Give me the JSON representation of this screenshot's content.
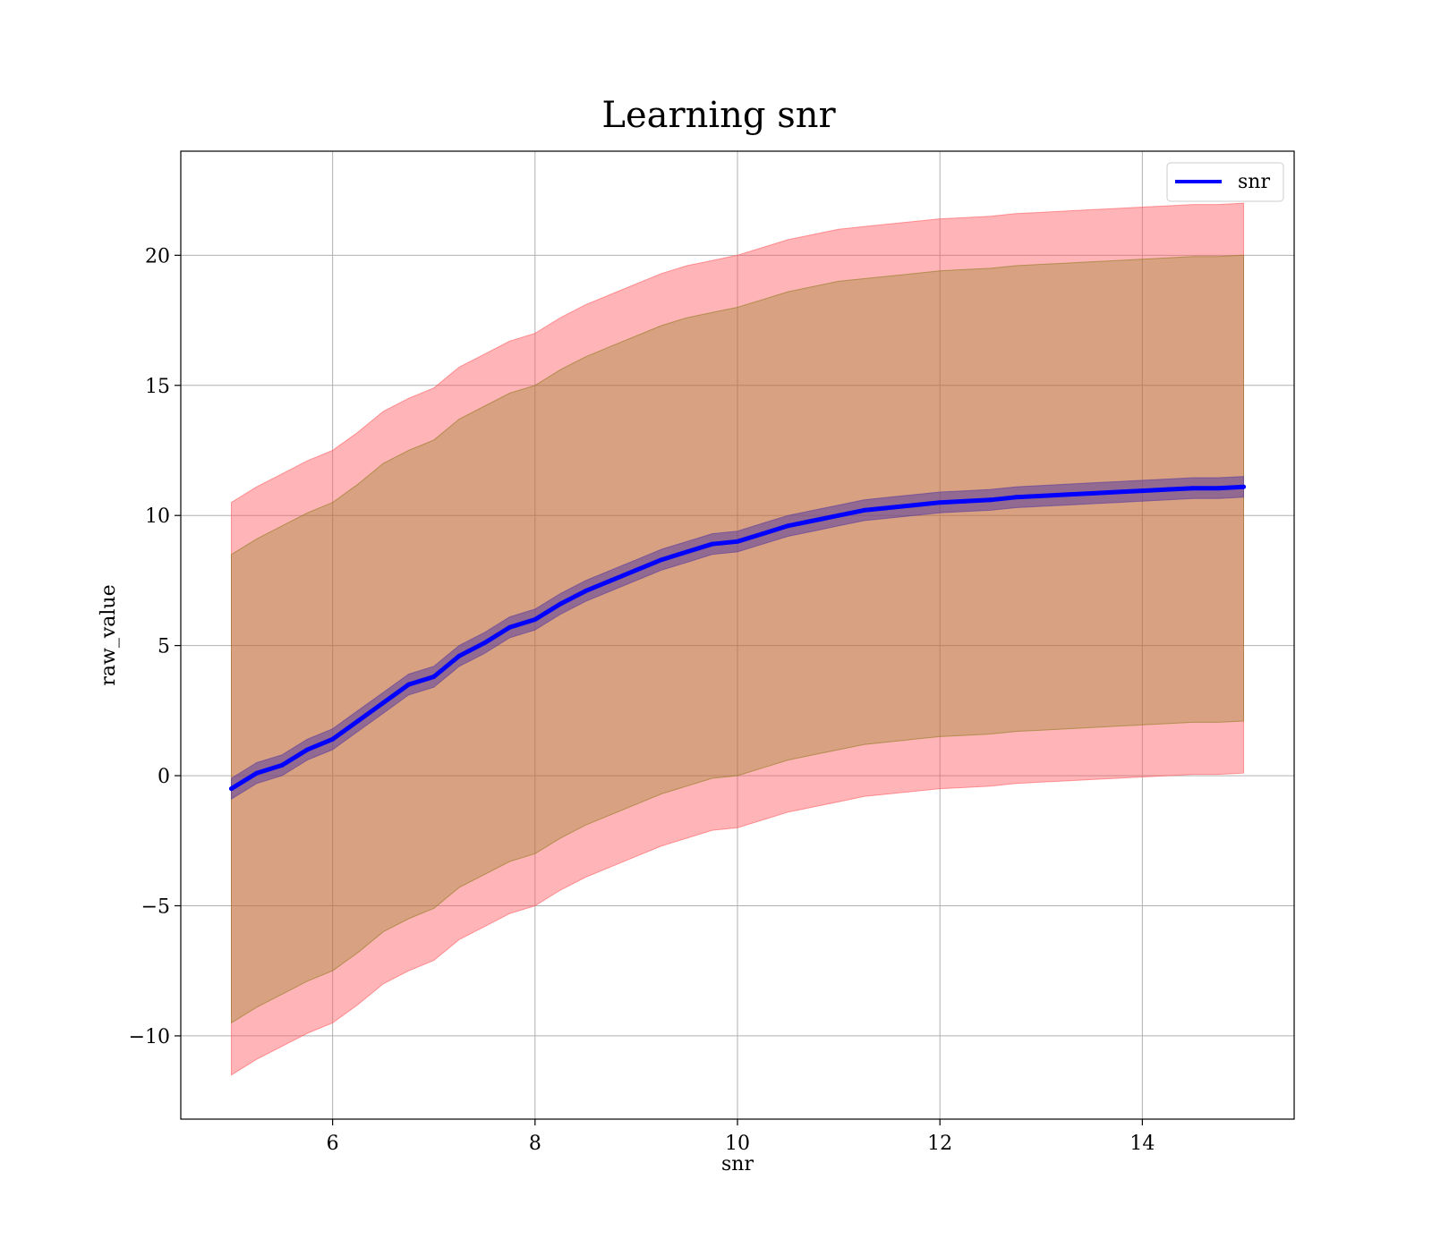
{
  "chart_data": {
    "type": "line",
    "title": "Learning snr",
    "xlabel": "snr",
    "ylabel": "raw_value",
    "xlim": [
      4.5,
      15.5
    ],
    "ylim": [
      -13.2,
      24.0
    ],
    "xticks": [
      6,
      8,
      10,
      12,
      14
    ],
    "yticks": [
      -10,
      -5,
      0,
      5,
      10,
      15,
      20
    ],
    "xtick_labels": [
      "6",
      "8",
      "10",
      "12",
      "14"
    ],
    "ytick_labels": [
      "−10",
      "−5",
      "0",
      "5",
      "10",
      "15",
      "20"
    ],
    "grid": true,
    "legend": {
      "placement": "top-right",
      "entries": [
        "snr"
      ]
    },
    "x": [
      5,
      5.25,
      5.5,
      5.75,
      6,
      6.25,
      6.5,
      6.75,
      7,
      7.25,
      7.5,
      7.75,
      8,
      8.25,
      8.5,
      8.75,
      9,
      9.25,
      9.5,
      9.75,
      10,
      10.25,
      10.5,
      10.75,
      11,
      11.25,
      11.5,
      11.75,
      12,
      12.25,
      12.5,
      12.75,
      13,
      13.25,
      13.5,
      13.75,
      14,
      14.25,
      14.5,
      14.75,
      15
    ],
    "series": [
      {
        "name": "snr",
        "color": "#0000ff",
        "values": [
          -0.5,
          0.1,
          0.4,
          1.0,
          1.4,
          2.1,
          2.8,
          3.5,
          3.8,
          4.6,
          5.1,
          5.7,
          6.0,
          6.6,
          7.1,
          7.5,
          7.9,
          8.3,
          8.6,
          8.9,
          9.0,
          9.3,
          9.6,
          9.8,
          10.0,
          10.2,
          10.3,
          10.4,
          10.5,
          10.55,
          10.6,
          10.7,
          10.75,
          10.8,
          10.85,
          10.9,
          10.95,
          11.0,
          11.05,
          11.05,
          11.1
        ]
      }
    ],
    "bands": [
      {
        "color": "#ff5a5f",
        "opacity": 0.45,
        "upper": [
          10.5,
          11.1,
          11.6,
          12.1,
          12.5,
          13.2,
          14.0,
          14.5,
          14.9,
          15.7,
          16.2,
          16.7,
          17.0,
          17.6,
          18.1,
          18.5,
          18.9,
          19.3,
          19.6,
          19.8,
          20.0,
          20.3,
          20.6,
          20.8,
          21.0,
          21.1,
          21.2,
          21.3,
          21.4,
          21.45,
          21.5,
          21.6,
          21.65,
          21.7,
          21.75,
          21.8,
          21.85,
          21.9,
          21.95,
          21.95,
          22.0
        ],
        "lower": [
          -11.5,
          -10.9,
          -10.4,
          -9.9,
          -9.5,
          -8.8,
          -8.0,
          -7.5,
          -7.1,
          -6.3,
          -5.8,
          -5.3,
          -5.0,
          -4.4,
          -3.9,
          -3.5,
          -3.1,
          -2.7,
          -2.4,
          -2.1,
          -2.0,
          -1.7,
          -1.4,
          -1.2,
          -1.0,
          -0.8,
          -0.7,
          -0.6,
          -0.5,
          -0.45,
          -0.4,
          -0.3,
          -0.25,
          -0.2,
          -0.15,
          -0.1,
          -0.05,
          0.0,
          0.05,
          0.05,
          0.1
        ]
      },
      {
        "color": "#8f7a1e",
        "opacity": 0.35,
        "upper": [
          8.5,
          9.1,
          9.6,
          10.1,
          10.5,
          11.2,
          12.0,
          12.5,
          12.9,
          13.7,
          14.2,
          14.7,
          15.0,
          15.6,
          16.1,
          16.5,
          16.9,
          17.3,
          17.6,
          17.8,
          18.0,
          18.3,
          18.6,
          18.8,
          19.0,
          19.1,
          19.2,
          19.3,
          19.4,
          19.45,
          19.5,
          19.6,
          19.65,
          19.7,
          19.75,
          19.8,
          19.85,
          19.9,
          19.95,
          19.95,
          20.0
        ],
        "lower": [
          -9.5,
          -8.9,
          -8.4,
          -7.9,
          -7.5,
          -6.8,
          -6.0,
          -5.5,
          -5.1,
          -4.3,
          -3.8,
          -3.3,
          -3.0,
          -2.4,
          -1.9,
          -1.5,
          -1.1,
          -0.7,
          -0.4,
          -0.1,
          0.0,
          0.3,
          0.6,
          0.8,
          1.0,
          1.2,
          1.3,
          1.4,
          1.5,
          1.55,
          1.6,
          1.7,
          1.75,
          1.8,
          1.85,
          1.9,
          1.95,
          2.0,
          2.05,
          2.05,
          2.1
        ]
      },
      {
        "color": "#5a3d9e",
        "opacity": 0.55,
        "upper": [
          -0.1,
          0.5,
          0.8,
          1.4,
          1.8,
          2.5,
          3.2,
          3.9,
          4.2,
          5.0,
          5.5,
          6.1,
          6.4,
          7.0,
          7.5,
          7.9,
          8.3,
          8.7,
          9.0,
          9.3,
          9.4,
          9.7,
          10.0,
          10.2,
          10.4,
          10.6,
          10.7,
          10.8,
          10.9,
          10.95,
          11.0,
          11.1,
          11.15,
          11.2,
          11.25,
          11.3,
          11.35,
          11.4,
          11.45,
          11.45,
          11.5
        ],
        "lower": [
          -0.9,
          -0.3,
          0.0,
          0.6,
          1.0,
          1.7,
          2.4,
          3.1,
          3.4,
          4.2,
          4.7,
          5.3,
          5.6,
          6.2,
          6.7,
          7.1,
          7.5,
          7.9,
          8.2,
          8.5,
          8.6,
          8.9,
          9.2,
          9.4,
          9.6,
          9.8,
          9.9,
          10.0,
          10.1,
          10.15,
          10.2,
          10.3,
          10.35,
          10.4,
          10.45,
          10.5,
          10.55,
          10.6,
          10.65,
          10.65,
          10.7
        ]
      }
    ]
  }
}
